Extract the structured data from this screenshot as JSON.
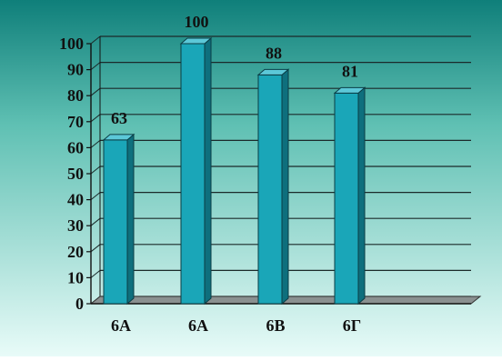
{
  "chart_data": {
    "type": "bar",
    "title": "",
    "xlabel": "",
    "ylabel": "",
    "categories": [
      "6А",
      "6А",
      "6В",
      "6Г"
    ],
    "values": [
      63,
      100,
      88,
      81
    ],
    "data_labels": [
      "63",
      "100",
      "88",
      "81"
    ],
    "yticks": [
      "0",
      "10",
      "20",
      "30",
      "40",
      "50",
      "60",
      "70",
      "80",
      "90",
      "100"
    ],
    "ylim": [
      0,
      100
    ],
    "grid": true,
    "legend": "none",
    "style": "3d-column"
  },
  "colors": {
    "background_top": "#0f7f7a",
    "background_bottom": "#e8fbf8",
    "bar_front": "#1aa6b8",
    "bar_side": "#0e6f7d",
    "bar_top": "#5cc8d8",
    "floor": "#8a9090"
  }
}
